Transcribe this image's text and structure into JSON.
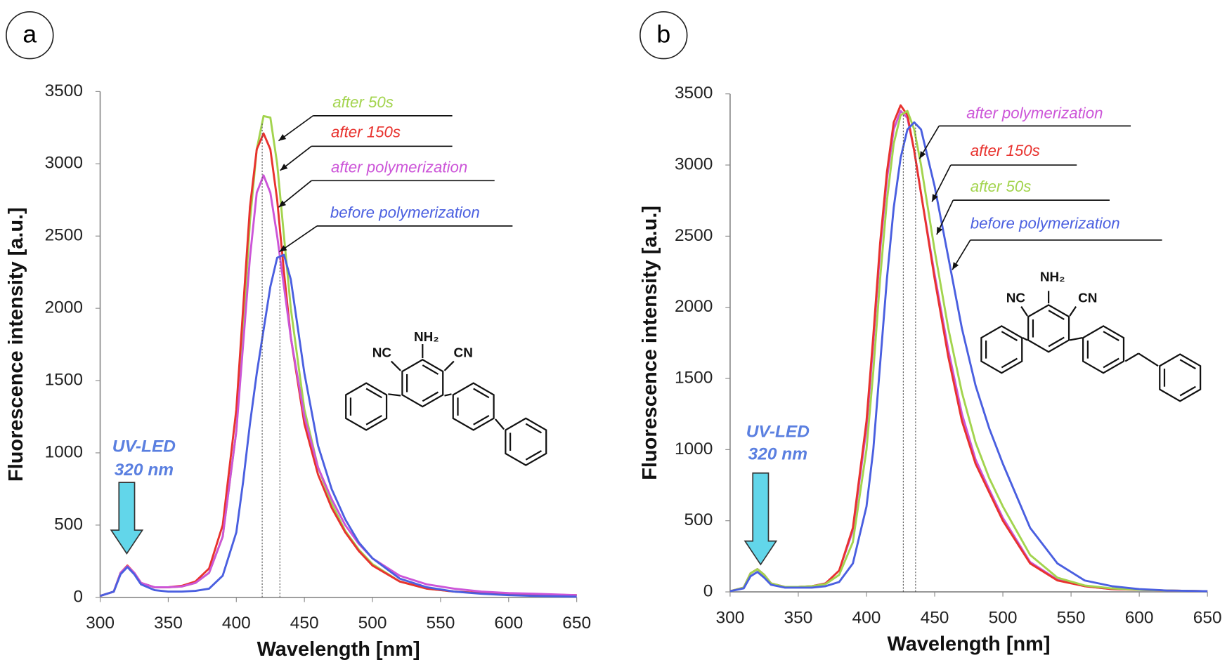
{
  "chart_data": [
    {
      "type": "line",
      "panel_label": "a",
      "x_label": "Wavelength [nm]",
      "y_label": "Fluorescence intensity [a.u.]",
      "xlim": [
        300,
        650
      ],
      "ylim": [
        0,
        3500
      ],
      "xticks": [
        300,
        350,
        400,
        450,
        500,
        550,
        600,
        650
      ],
      "yticks": [
        0,
        500,
        1000,
        1500,
        2000,
        2500,
        3000,
        3500
      ],
      "x": [
        300,
        310,
        315,
        320,
        325,
        330,
        340,
        350,
        360,
        370,
        380,
        390,
        400,
        405,
        410,
        415,
        420,
        425,
        430,
        435,
        440,
        450,
        460,
        470,
        480,
        490,
        500,
        520,
        540,
        560,
        580,
        600,
        620,
        650
      ],
      "series": [
        {
          "name": "after 50s",
          "color": "#a3d44e",
          "values": [
            10,
            40,
            170,
            215,
            170,
            100,
            70,
            70,
            75,
            100,
            170,
            420,
            1150,
            1850,
            2600,
            3100,
            3330,
            3320,
            3000,
            2500,
            2000,
            1300,
            900,
            650,
            460,
            330,
            230,
            110,
            60,
            40,
            30,
            25,
            20,
            15
          ]
        },
        {
          "name": "after 150s",
          "color": "#e8322e",
          "values": [
            10,
            40,
            170,
            220,
            170,
            100,
            70,
            70,
            80,
            110,
            200,
            500,
            1300,
            2000,
            2700,
            3100,
            3210,
            3100,
            2750,
            2250,
            1800,
            1200,
            850,
            620,
            450,
            320,
            220,
            110,
            60,
            40,
            30,
            25,
            20,
            15
          ]
        },
        {
          "name": "after polymerization",
          "color": "#cc55d8",
          "values": [
            10,
            40,
            170,
            215,
            170,
            100,
            70,
            70,
            75,
            100,
            170,
            420,
            1150,
            1750,
            2350,
            2800,
            2920,
            2800,
            2500,
            2150,
            1800,
            1250,
            900,
            680,
            500,
            370,
            270,
            150,
            90,
            60,
            40,
            30,
            25,
            15
          ]
        },
        {
          "name": "before polymerization",
          "color": "#4a5fe0",
          "values": [
            10,
            40,
            160,
            210,
            160,
            90,
            50,
            40,
            40,
            45,
            60,
            150,
            450,
            800,
            1200,
            1550,
            1850,
            2150,
            2350,
            2370,
            2200,
            1550,
            1050,
            750,
            540,
            380,
            270,
            130,
            70,
            40,
            25,
            15,
            10,
            5
          ]
        }
      ],
      "peak_lines": [
        419,
        432
      ],
      "annotation": [
        "UV-LED",
        "320 nm"
      ],
      "annotation_color": "#5a7fe0",
      "molecule_labels": [
        "NC",
        "NH₂",
        "CN"
      ]
    },
    {
      "type": "line",
      "panel_label": "b",
      "x_label": "Wavelength [nm]",
      "y_label": "Fluorescence intensity [a.u.]",
      "xlim": [
        300,
        650
      ],
      "ylim": [
        0,
        3500
      ],
      "xticks": [
        300,
        350,
        400,
        450,
        500,
        550,
        600,
        650
      ],
      "yticks": [
        0,
        500,
        1000,
        1500,
        2000,
        2500,
        3000,
        3500
      ],
      "x": [
        300,
        310,
        315,
        320,
        325,
        330,
        340,
        350,
        360,
        370,
        380,
        390,
        400,
        405,
        410,
        415,
        420,
        425,
        430,
        435,
        440,
        450,
        460,
        470,
        480,
        490,
        500,
        520,
        540,
        560,
        580,
        600,
        620,
        650
      ],
      "series": [
        {
          "name": "after polymerization",
          "color": "#cc55d8",
          "values": [
            5,
            30,
            130,
            160,
            120,
            60,
            35,
            35,
            40,
            60,
            150,
            430,
            1150,
            1750,
            2400,
            2900,
            3250,
            3380,
            3330,
            3100,
            2800,
            2230,
            1700,
            1250,
            930,
            720,
            520,
            210,
            85,
            40,
            20,
            15,
            10,
            5
          ]
        },
        {
          "name": "after 150s",
          "color": "#e8322e",
          "values": [
            5,
            30,
            130,
            160,
            120,
            60,
            35,
            35,
            40,
            60,
            150,
            450,
            1200,
            1800,
            2450,
            2950,
            3300,
            3420,
            3350,
            3100,
            2800,
            2200,
            1650,
            1200,
            900,
            700,
            500,
            200,
            80,
            40,
            20,
            15,
            10,
            5
          ]
        },
        {
          "name": "after 50s",
          "color": "#a3d44e",
          "values": [
            5,
            30,
            130,
            160,
            120,
            60,
            35,
            35,
            40,
            55,
            120,
            350,
            1000,
            1550,
            2200,
            2750,
            3150,
            3350,
            3380,
            3250,
            3000,
            2400,
            1850,
            1400,
            1050,
            800,
            600,
            260,
            100,
            45,
            25,
            15,
            10,
            5
          ]
        },
        {
          "name": "before polymerization",
          "color": "#4a5fe0",
          "values": [
            5,
            25,
            110,
            140,
            100,
            50,
            30,
            30,
            30,
            40,
            70,
            200,
            600,
            1000,
            1600,
            2200,
            2700,
            3050,
            3250,
            3300,
            3250,
            2850,
            2350,
            1850,
            1450,
            1150,
            900,
            450,
            200,
            80,
            40,
            20,
            10,
            5
          ]
        }
      ],
      "peak_lines": [
        427,
        436
      ],
      "annotation": [
        "UV-LED",
        "320 nm"
      ],
      "annotation_color": "#5a7fe0",
      "molecule_labels": [
        "NC",
        "NH₂",
        "CN"
      ]
    }
  ]
}
